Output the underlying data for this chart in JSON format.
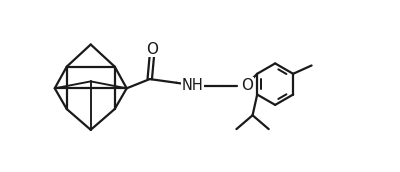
{
  "bg_color": "#ffffff",
  "line_color": "#1a1a1a",
  "line_width": 1.6,
  "font_size": 10,
  "figsize": [
    4.0,
    1.72
  ],
  "dpi": 100,
  "xlim": [
    0,
    7.5
  ],
  "ylim": [
    0.5,
    4.2
  ]
}
